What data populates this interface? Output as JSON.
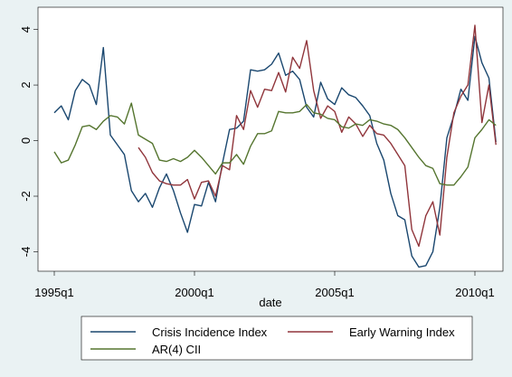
{
  "chart_data": {
    "type": "line",
    "x_label": "date",
    "x": [
      "1995q1",
      "1995q2",
      "1995q3",
      "1995q4",
      "1996q1",
      "1996q2",
      "1996q3",
      "1996q4",
      "1997q1",
      "1997q2",
      "1997q3",
      "1997q4",
      "1998q1",
      "1998q2",
      "1998q3",
      "1998q4",
      "1999q1",
      "1999q2",
      "1999q3",
      "1999q4",
      "2000q1",
      "2000q2",
      "2000q3",
      "2000q4",
      "2001q1",
      "2001q2",
      "2001q3",
      "2001q4",
      "2002q1",
      "2002q2",
      "2002q3",
      "2002q4",
      "2003q1",
      "2003q2",
      "2003q3",
      "2003q4",
      "2004q1",
      "2004q2",
      "2004q3",
      "2004q4",
      "2005q1",
      "2005q2",
      "2005q3",
      "2005q4",
      "2006q1",
      "2006q2",
      "2006q3",
      "2006q4",
      "2007q1",
      "2007q2",
      "2007q3",
      "2007q4",
      "2008q1",
      "2008q2",
      "2008q3",
      "2008q4",
      "2009q1",
      "2009q2",
      "2009q3",
      "2009q4",
      "2010q1",
      "2010q2",
      "2010q3",
      "2010q4"
    ],
    "xticks": [
      "1995q1",
      "2000q1",
      "2005q1",
      "2010q1"
    ],
    "ylim": [
      -4.7,
      4.8
    ],
    "yticks": [
      -4,
      -2,
      0,
      2,
      4
    ],
    "grid": false,
    "series": [
      {
        "name": "Crisis Incidence Index",
        "color": "#1a476f",
        "values": [
          1.0,
          1.25,
          0.75,
          1.8,
          2.2,
          2.0,
          1.3,
          3.35,
          0.2,
          -0.15,
          -0.5,
          -1.8,
          -2.2,
          -1.9,
          -2.4,
          -1.7,
          -1.2,
          -1.8,
          -2.6,
          -3.3,
          -2.3,
          -2.35,
          -1.5,
          -2.2,
          -0.8,
          0.4,
          0.45,
          0.7,
          2.55,
          2.5,
          2.55,
          2.75,
          3.15,
          2.35,
          2.5,
          2.2,
          1.2,
          0.85,
          2.1,
          1.5,
          1.3,
          1.9,
          1.65,
          1.55,
          1.25,
          0.9,
          -0.1,
          -0.7,
          -1.9,
          -2.7,
          -2.85,
          -4.15,
          -4.55,
          -4.5,
          -4.0,
          -2.4,
          0.1,
          0.9,
          1.85,
          1.45,
          3.75,
          2.8,
          2.25,
          -0.05
        ]
      },
      {
        "name": "Early Warning Index",
        "color": "#90353b",
        "values": [
          null,
          null,
          null,
          null,
          null,
          null,
          null,
          null,
          null,
          null,
          null,
          null,
          -0.25,
          -0.6,
          -1.15,
          -1.45,
          -1.55,
          -1.6,
          -1.6,
          -1.4,
          -2.1,
          -1.5,
          -1.45,
          -2.0,
          -0.9,
          -1.05,
          0.9,
          0.4,
          1.8,
          1.2,
          1.85,
          1.8,
          2.45,
          1.75,
          3.0,
          2.6,
          3.6,
          1.8,
          0.8,
          1.25,
          1.05,
          0.3,
          0.85,
          0.6,
          0.15,
          0.55,
          0.25,
          0.2,
          -0.1,
          -0.5,
          -0.9,
          -3.2,
          -3.8,
          -2.7,
          -2.2,
          -3.4,
          -0.6,
          1.0,
          1.6,
          2.0,
          4.15,
          0.65,
          2.0,
          -0.15
        ]
      },
      {
        "name": "AR(4) CII",
        "color": "#55752f",
        "values": [
          -0.4,
          -0.8,
          -0.7,
          -0.15,
          0.5,
          0.55,
          0.4,
          0.7,
          0.9,
          0.85,
          0.6,
          1.35,
          0.2,
          0.05,
          -0.1,
          -0.7,
          -0.75,
          -0.65,
          -0.75,
          -0.6,
          -0.35,
          -0.6,
          -0.9,
          -1.2,
          -0.8,
          -0.8,
          -0.5,
          -0.85,
          -0.2,
          0.25,
          0.25,
          0.35,
          1.05,
          1.0,
          1.0,
          1.05,
          1.3,
          1.0,
          0.95,
          0.8,
          0.75,
          0.5,
          0.45,
          0.6,
          0.55,
          0.75,
          0.7,
          0.6,
          0.55,
          0.4,
          0.1,
          -0.25,
          -0.6,
          -0.9,
          -1.0,
          -1.55,
          -1.6,
          -1.6,
          -1.3,
          -0.95,
          0.1,
          0.4,
          0.75,
          0.55
        ]
      }
    ]
  }
}
